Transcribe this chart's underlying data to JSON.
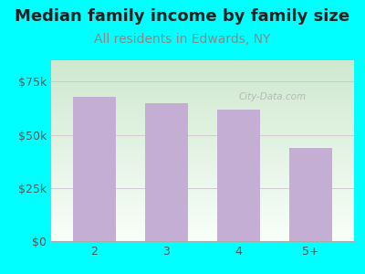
{
  "title": "Median family income by family size",
  "subtitle": "All residents in Edwards, NY",
  "categories": [
    "2",
    "3",
    "4",
    "5+"
  ],
  "values": [
    68000,
    65000,
    62000,
    44000
  ],
  "bar_color": "#c4aed4",
  "background_color": "#00ffff",
  "title_color": "#222222",
  "subtitle_color": "#888888",
  "tick_color": "#555555",
  "yticks": [
    0,
    25000,
    50000,
    75000
  ],
  "ytick_labels": [
    "$0",
    "$25k",
    "$50k",
    "$75k"
  ],
  "ylim": [
    0,
    85000
  ],
  "title_fontsize": 13,
  "subtitle_fontsize": 10,
  "watermark": "City-Data.com",
  "grid_color": "#cccccc",
  "plot_bg_gradient_top": "#d0e8d0",
  "plot_bg_gradient_bottom": "#f8fff8"
}
